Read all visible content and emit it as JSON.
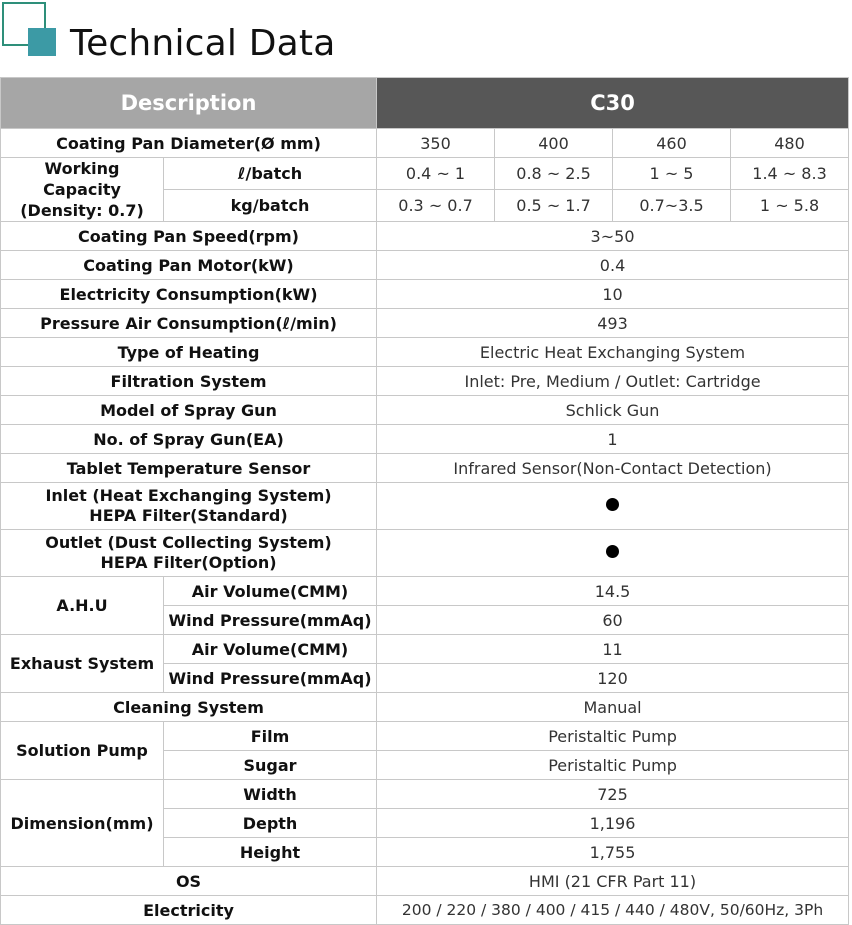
{
  "title": "Technical Data",
  "header": {
    "description": "Description",
    "model": "C30"
  },
  "rows": {
    "pan_diameter": {
      "label": "Coating Pan Diameter(Ø mm)",
      "values": [
        "350",
        "400",
        "460",
        "480"
      ]
    },
    "working_capacity": {
      "label": "Working Capacity (Density: 0.7)",
      "liter": {
        "label": "ℓ/batch",
        "values": [
          "0.4 ~ 1",
          "0.8 ~ 2.5",
          "1 ~ 5",
          "1.4 ~ 8.3"
        ]
      },
      "kg": {
        "label": "kg/batch",
        "values": [
          "0.3 ~ 0.7",
          "0.5 ~ 1.7",
          "0.7~3.5",
          "1 ~ 5.8"
        ]
      }
    },
    "pan_speed": {
      "label": "Coating Pan Speed(rpm)",
      "value": "3~50"
    },
    "pan_motor": {
      "label": "Coating Pan Motor(kW)",
      "value": "0.4"
    },
    "electricity_consumption": {
      "label": "Electricity Consumption(kW)",
      "value": "10"
    },
    "air_consumption": {
      "label": "Pressure Air Consumption(ℓ/min)",
      "value": "493"
    },
    "heating": {
      "label": "Type of Heating",
      "value": "Electric Heat Exchanging System"
    },
    "filtration": {
      "label": "Filtration System",
      "value": "Inlet: Pre, Medium / Outlet: Cartridge"
    },
    "spray_model": {
      "label": "Model of Spray Gun",
      "value": "Schlick Gun"
    },
    "spray_count": {
      "label": "No. of Spray Gun(EA)",
      "value": "1"
    },
    "temp_sensor": {
      "label": "Tablet Temperature Sensor",
      "value": "Infrared Sensor(Non-Contact Detection)"
    },
    "inlet_hepa": {
      "label_line1": "Inlet (Heat Exchanging System)",
      "label_line2": "HEPA Filter(Standard)"
    },
    "outlet_hepa": {
      "label_line1": "Outlet (Dust Collecting System)",
      "label_line2": "HEPA Filter(Option)"
    },
    "ahu": {
      "label": "A.H.U",
      "air_volume": {
        "label": "Air Volume(CMM)",
        "value": "14.5"
      },
      "wind_pressure": {
        "label": "Wind Pressure(mmAq)",
        "value": "60"
      }
    },
    "exhaust": {
      "label": "Exhaust System",
      "air_volume": {
        "label": "Air Volume(CMM)",
        "value": "11"
      },
      "wind_pressure": {
        "label": "Wind Pressure(mmAq)",
        "value": "120"
      }
    },
    "cleaning": {
      "label": "Cleaning System",
      "value": "Manual"
    },
    "solution_pump": {
      "label": "Solution Pump",
      "film": {
        "label": "Film",
        "value": "Peristaltic Pump"
      },
      "sugar": {
        "label": "Sugar",
        "value": "Peristaltic Pump"
      }
    },
    "dimension": {
      "label": "Dimension(mm)",
      "width": {
        "label": "Width",
        "value": "725"
      },
      "depth": {
        "label": "Depth",
        "value": "1,196"
      },
      "height": {
        "label": "Height",
        "value": "1,755"
      }
    },
    "os": {
      "label": "OS",
      "value": "HMI (21 CFR Part 11)"
    },
    "electricity": {
      "label": "Electricity",
      "value": "200 / 220 / 380 / 400 / 415 / 440 / 480V, 50/60Hz, 3Ph"
    }
  },
  "icons": {
    "logo": "square-logo-icon",
    "included_mark": "filled-dot-icon"
  },
  "colors": {
    "description_header": "#a6a6a6",
    "model_header": "#575757",
    "logo_outline": "#2e8f7a",
    "logo_fill": "#3c9aa5"
  }
}
